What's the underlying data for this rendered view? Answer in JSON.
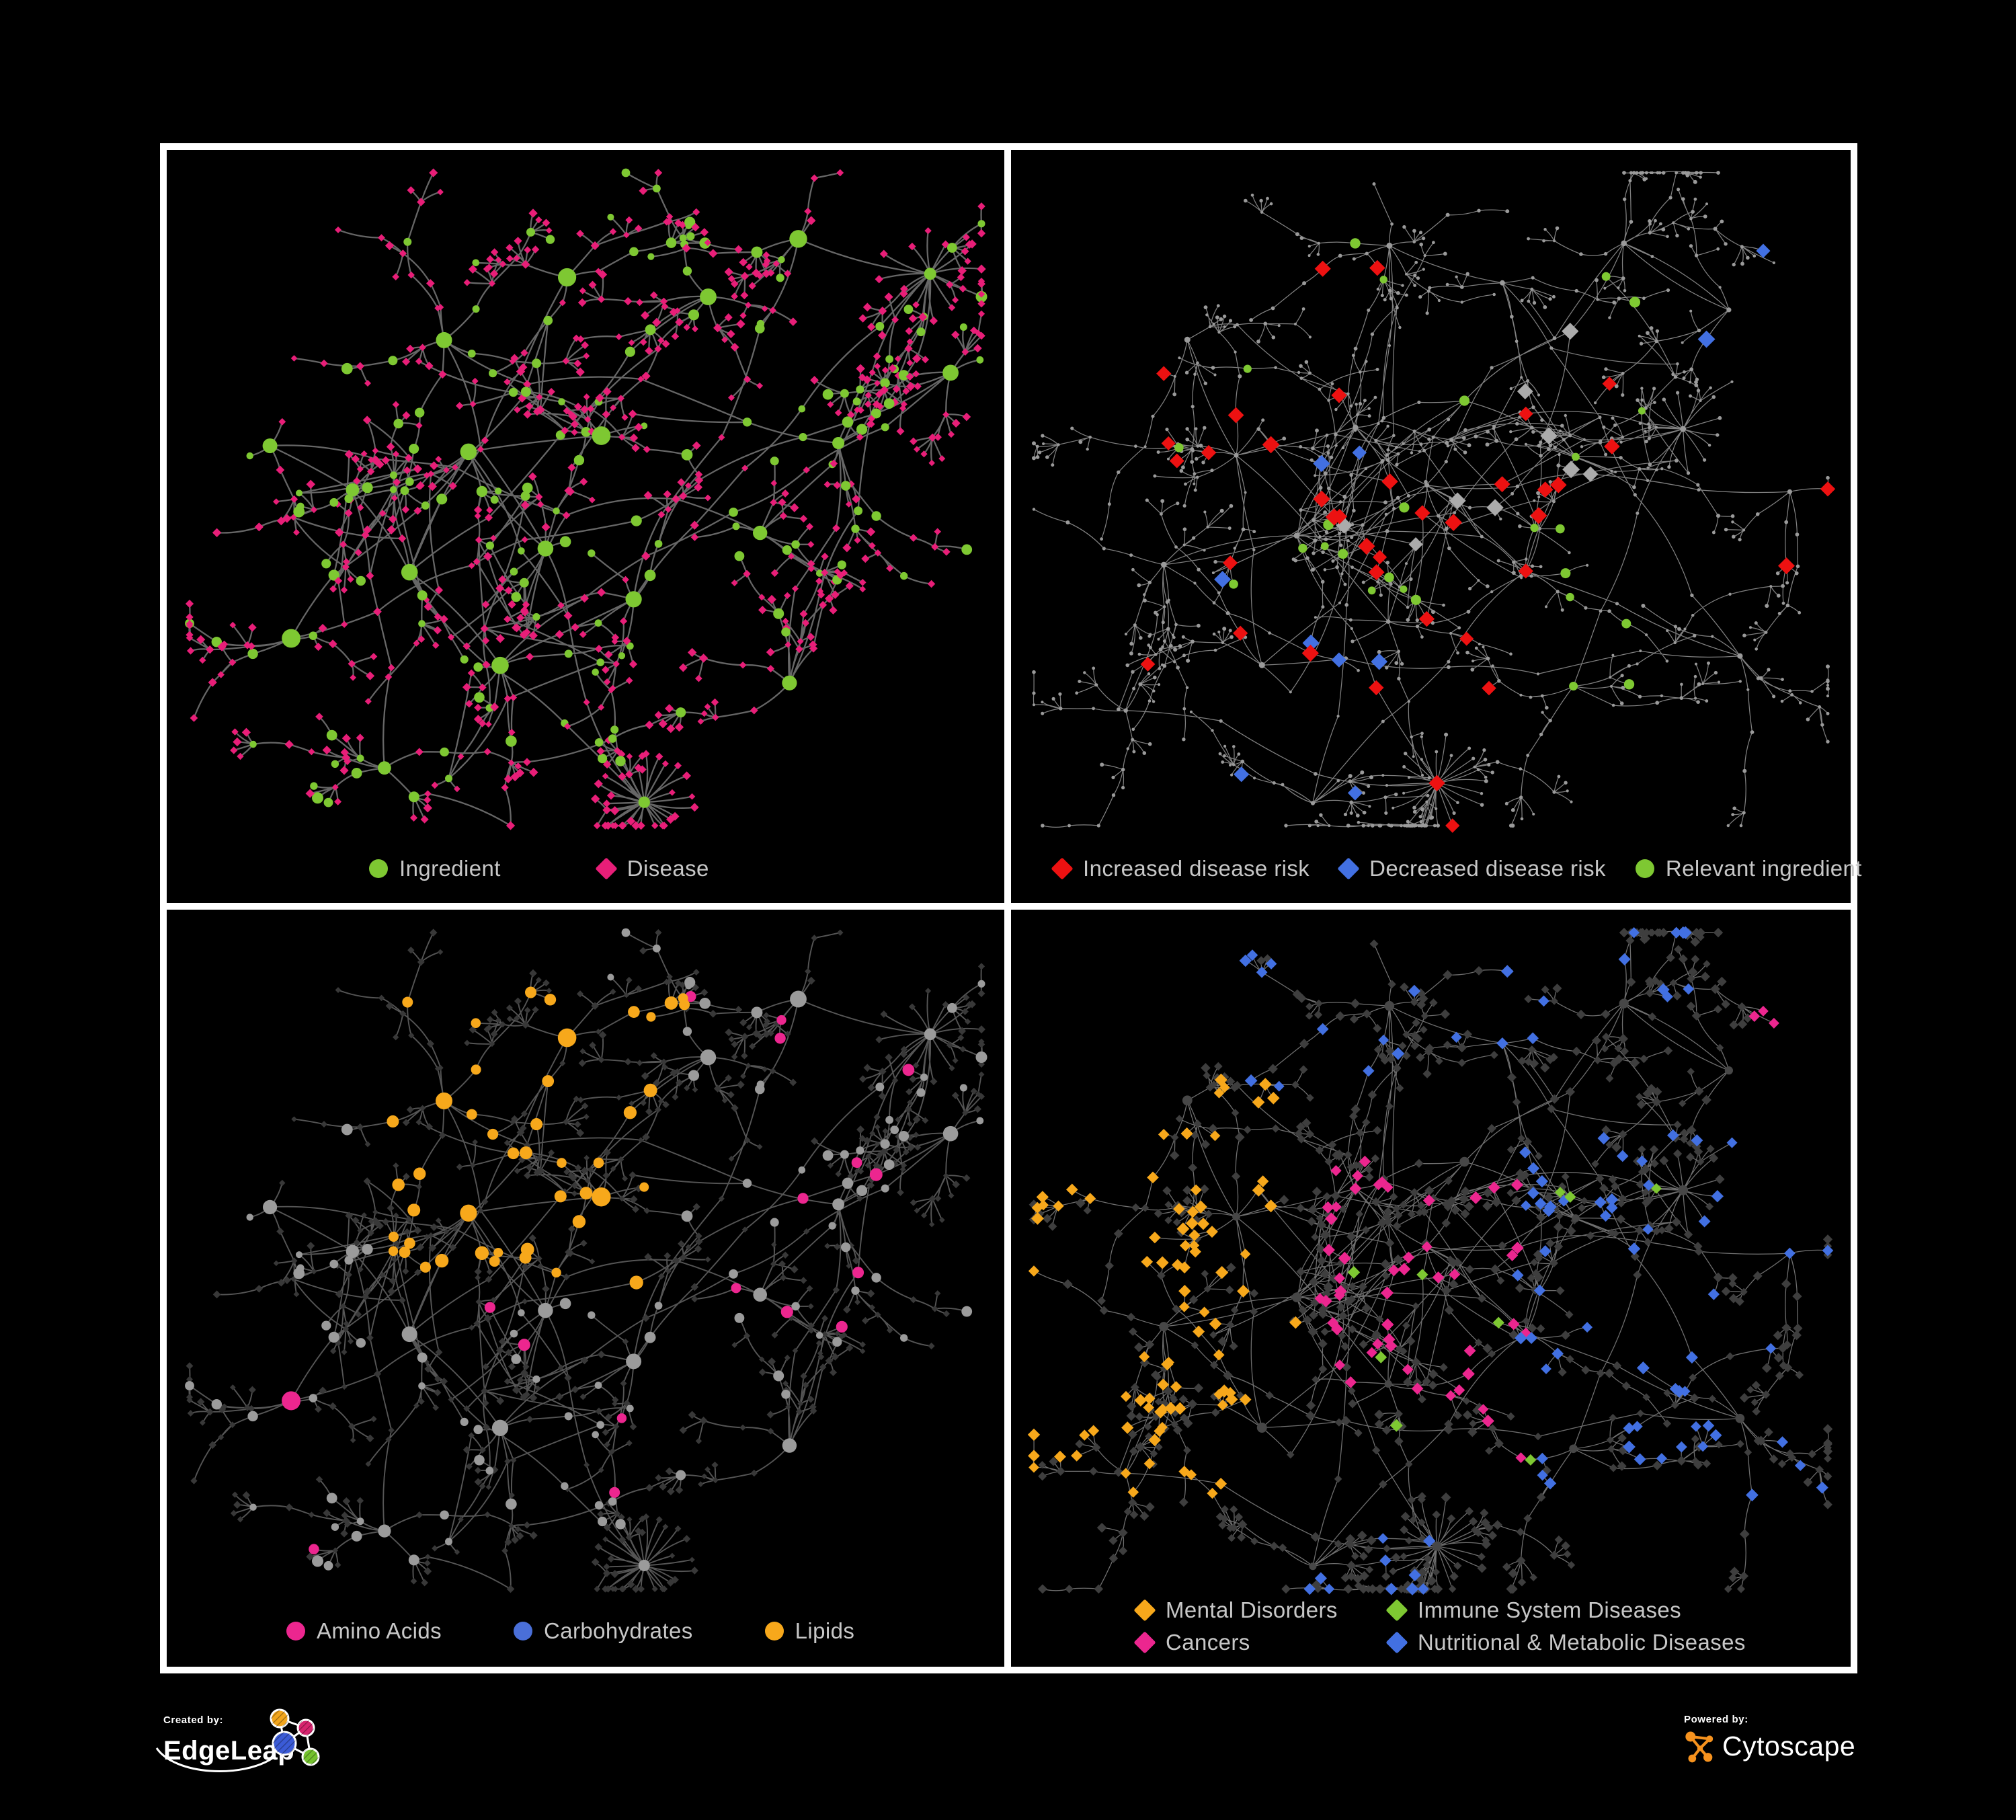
{
  "figure": {
    "background": "#000000",
    "panel_border": "#ffffff",
    "legend_text_color": "#C7C7C7"
  },
  "panels": {
    "p1": {
      "name": "ingredient-disease-network",
      "legend": [
        {
          "shape": "circle",
          "color": "#7EC832",
          "label": "Ingredient"
        },
        {
          "shape": "diamond",
          "color": "#E81E78",
          "label": "Disease"
        }
      ]
    },
    "p2": {
      "name": "disease-risk-network",
      "legend": [
        {
          "shape": "diamond",
          "color": "#ED1111",
          "label": "Increased disease risk"
        },
        {
          "shape": "diamond",
          "color": "#4270E2",
          "label": "Decreased disease risk"
        },
        {
          "shape": "circle",
          "color": "#7EC832",
          "label": "Relevant ingredient"
        }
      ]
    },
    "p3": {
      "name": "ingredient-class-network",
      "legend": [
        {
          "shape": "circle",
          "color": "#EC268F",
          "label": "Amino Acids"
        },
        {
          "shape": "circle",
          "color": "#4A6FD8",
          "label": "Carbohydrates"
        },
        {
          "shape": "circle",
          "color": "#F7A81B",
          "label": "Lipids"
        }
      ]
    },
    "p4": {
      "name": "disease-class-network",
      "legend": [
        {
          "shape": "diamond",
          "color": "#F7A81B",
          "label": "Mental Disorders"
        },
        {
          "shape": "diamond",
          "color": "#7EC832",
          "label": "Immune System Diseases"
        },
        {
          "shape": "diamond",
          "color": "#EC268F",
          "label": "Cancers"
        },
        {
          "shape": "diamond",
          "color": "#4270E2",
          "label": "Nutritional & Metabolic Diseases"
        }
      ]
    }
  },
  "network_styles": {
    "p1": {
      "edge": "#6F6F6F",
      "circle": "#7EC832",
      "diamond": "#E81E78"
    },
    "p2": {
      "edge": "#8E8E8E",
      "dot": "#9A9A9A",
      "relevant": "#7EC832",
      "increased": "#ED1111",
      "decreased": "#4270E2",
      "neutral": "#ABABAB"
    },
    "p3": {
      "edge": "#9A9A9A",
      "circle": "#9B9B9B",
      "diamond": "#383838",
      "amino": "#EC268F",
      "carbohydrate": "#4A6FD8",
      "lipid": "#F7A81B"
    },
    "p4": {
      "edge": "#8A8A8A",
      "diamond": "#3E3E3E",
      "circle": "#474747",
      "mental": "#F7A81B",
      "immune": "#7EC832",
      "cancer": "#EC268F",
      "nutrition": "#4270E2"
    }
  },
  "footer": {
    "created_by_label": "Created by:",
    "left_brand": "EdgeLeap",
    "powered_by_label": "Powered by:",
    "right_brand": "Cytoscape",
    "edgeleap_colors": {
      "orange": "#F2A51C",
      "pink": "#D6246E",
      "blue": "#3B5BD6",
      "green": "#74C12E"
    },
    "cytoscape_color": "#F6921E"
  }
}
